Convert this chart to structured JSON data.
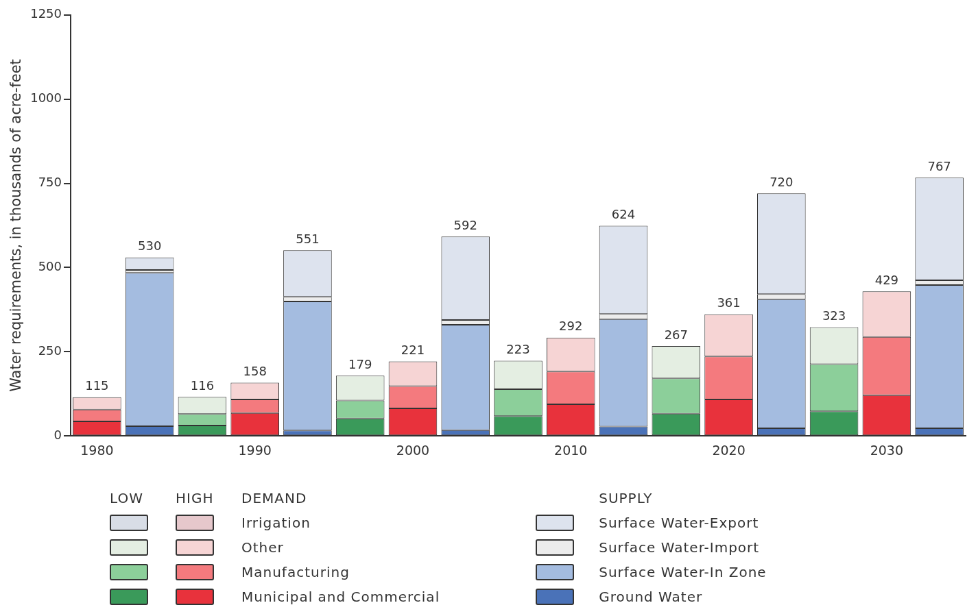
{
  "chart_data": {
    "type": "bar",
    "stacked": true,
    "ylabel": "Water requirements, in thousands of acre-feet",
    "ylim": [
      0,
      1250
    ],
    "yticks": [
      0,
      250,
      500,
      750,
      1000,
      1250
    ],
    "grid": false,
    "legend": "bottom",
    "categories": [
      "1980",
      null,
      null,
      "1990",
      null,
      null,
      "2000",
      null,
      null,
      "2010",
      null,
      null,
      "2020",
      null,
      null,
      "2030",
      null
    ],
    "annotations": [
      "LOW",
      "HIGH",
      "DEMAND",
      "SUPPLY"
    ],
    "totals": [
      "115",
      "530",
      "116",
      "158",
      "551",
      "179",
      "221",
      "592",
      "223",
      "292",
      "624",
      "267",
      "361",
      "720",
      "323",
      "429",
      "767"
    ],
    "series": [
      {
        "color": "#3a9a5a",
        "colors": [
          "#e8323c",
          null,
          "#3a9a5a",
          null,
          null,
          "#3a9a5a",
          null,
          null,
          "#3a9a5a",
          null,
          null,
          "#3a9a5a",
          null,
          null,
          "#3a9a5a",
          null,
          null
        ],
        "values": [
          43,
          null,
          31,
          null,
          null,
          52,
          null,
          null,
          59,
          null,
          null,
          66,
          null,
          null,
          73,
          null,
          null
        ]
      },
      {
        "color": "#8ccf9a",
        "colors": [
          "#f47a7e",
          null,
          "#8ccf9a",
          null,
          null,
          "#8ccf9a",
          null,
          null,
          "#8ccf9a",
          null,
          null,
          "#8ccf9a",
          null,
          null,
          "#8ccf9a",
          null,
          null
        ],
        "values": [
          35,
          null,
          34,
          null,
          null,
          53,
          null,
          null,
          80,
          null,
          null,
          105,
          null,
          null,
          140,
          null,
          null
        ]
      },
      {
        "color": "#e4eee2",
        "colors": [
          "#f6d4d4",
          null,
          "#e4eee2",
          null,
          null,
          "#e4eee2",
          null,
          null,
          "#e4eee2",
          null,
          null,
          "#e4eee2",
          null,
          null,
          "#e4eee2",
          null,
          null
        ],
        "values": [
          37,
          null,
          51,
          null,
          null,
          74,
          null,
          null,
          84,
          null,
          null,
          96,
          null,
          null,
          110,
          null,
          null
        ]
      },
      {
        "color": "#d8dde6",
        "values": [
          null,
          null,
          null,
          null,
          null,
          null,
          null,
          null,
          null,
          null,
          null,
          null,
          null,
          null,
          null,
          null,
          null
        ]
      },
      {
        "name": "Municipal and Commercial",
        "color": "#e8323c",
        "values": [
          null,
          null,
          null,
          68,
          null,
          null,
          82,
          null,
          null,
          94,
          null,
          null,
          108,
          null,
          null,
          121,
          null
        ]
      },
      {
        "name": "Manufacturing",
        "color": "#f47a7e",
        "values": [
          null,
          null,
          null,
          40,
          null,
          null,
          66,
          null,
          null,
          97,
          null,
          null,
          128,
          null,
          null,
          173,
          null
        ]
      },
      {
        "name": "Other",
        "color": "#f6d4d4",
        "values": [
          null,
          null,
          null,
          50,
          null,
          null,
          73,
          null,
          null,
          101,
          null,
          null,
          125,
          null,
          null,
          135,
          null
        ]
      },
      {
        "name": "Irrigation",
        "color": "#e6c8cc",
        "values": [
          null,
          null,
          null,
          null,
          null,
          null,
          null,
          null,
          null,
          null,
          null,
          null,
          null,
          null,
          null,
          null,
          null
        ]
      },
      {
        "name": "Ground Water",
        "color": "#4a72b8",
        "values": [
          null,
          29,
          null,
          null,
          16,
          null,
          null,
          17,
          null,
          null,
          28,
          null,
          null,
          23,
          null,
          null,
          23
        ]
      },
      {
        "name": "Surface Water-In Zone",
        "color": "#a4bce0",
        "values": [
          null,
          455,
          null,
          null,
          383,
          null,
          null,
          313,
          null,
          null,
          319,
          null,
          null,
          383,
          null,
          null,
          425
        ]
      },
      {
        "name": "Surface Water-Import",
        "color": "#ececec",
        "values": [
          null,
          9,
          null,
          null,
          14,
          null,
          null,
          14,
          null,
          null,
          15,
          null,
          null,
          15,
          null,
          null,
          14
        ]
      },
      {
        "name": "Surface Water-Export",
        "color": "#dde3ee",
        "values": [
          null,
          37,
          null,
          null,
          138,
          null,
          null,
          248,
          null,
          null,
          262,
          null,
          null,
          299,
          null,
          null,
          305
        ]
      }
    ]
  }
}
